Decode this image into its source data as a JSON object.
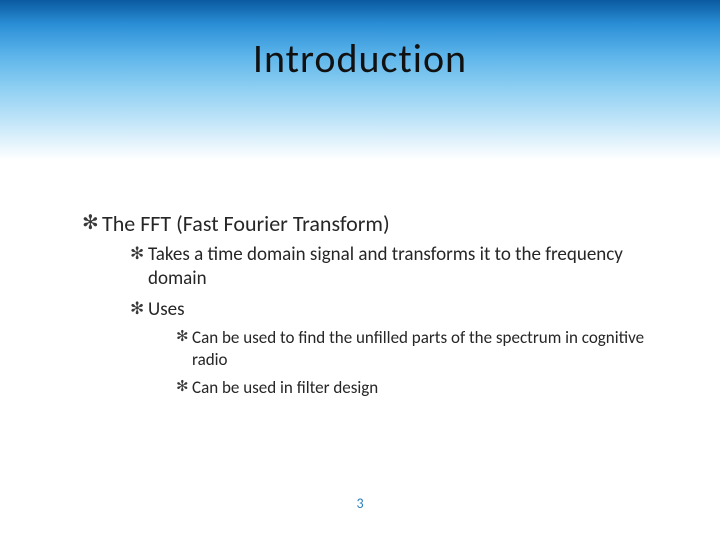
{
  "slide": {
    "title": "Introduction",
    "page_number": "3",
    "header_gradient": {
      "from": "#0a5aa0",
      "to": "#ffffff"
    },
    "bullet_glyph": "✻",
    "text_color": "#262626",
    "accent_color": "#2a7fbf",
    "items": [
      {
        "text": "The FFT (Fast Fourier Transform)",
        "items": [
          {
            "text": "Takes a time domain signal and transforms it to the frequency domain"
          },
          {
            "text": "Uses",
            "items": [
              {
                "text": "Can be used to find the unfilled parts of the spectrum in cognitive radio"
              },
              {
                "text": "Can be used in filter design"
              }
            ]
          }
        ]
      }
    ]
  }
}
